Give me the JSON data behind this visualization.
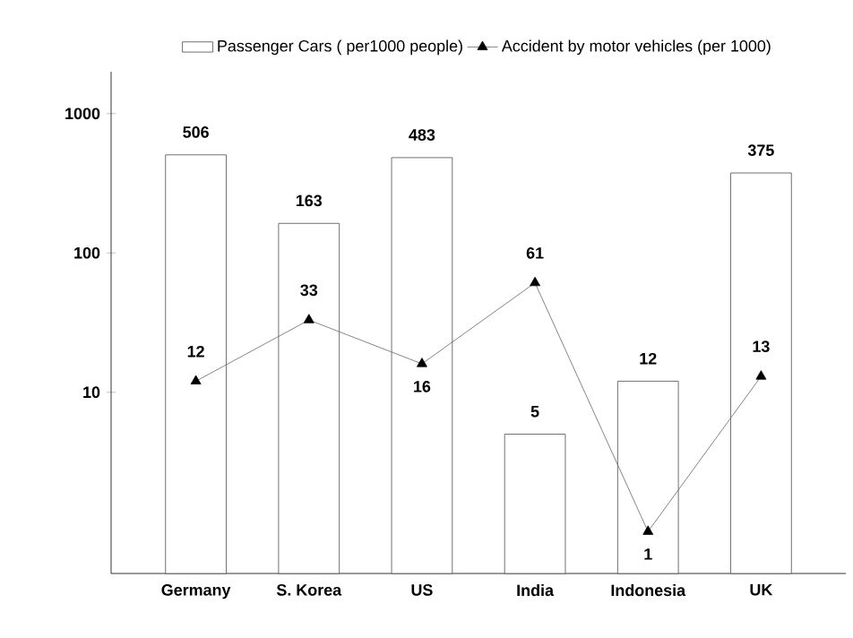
{
  "chart_data": {
    "type": "bar",
    "categories": [
      "Germany",
      "S. Korea",
      "US",
      "India",
      "Indonesia",
      "UK"
    ],
    "series": [
      {
        "name": "Passenger Cars ( per1000 people)",
        "color": "#ffffff",
        "values": [
          506,
          163,
          483,
          5,
          12,
          375
        ]
      },
      {
        "name": "Accident by motor vehicles  (per 1000)",
        "type": "line",
        "color": "#000000",
        "marker": "triangle",
        "values": [
          12,
          33,
          16,
          61,
          1,
          13
        ]
      }
    ],
    "log": "y",
    "ylim": [
      0.5,
      2000
    ],
    "yticks": [
      10,
      100,
      1000
    ],
    "data_labels": true,
    "grid": false,
    "legend": "top"
  }
}
